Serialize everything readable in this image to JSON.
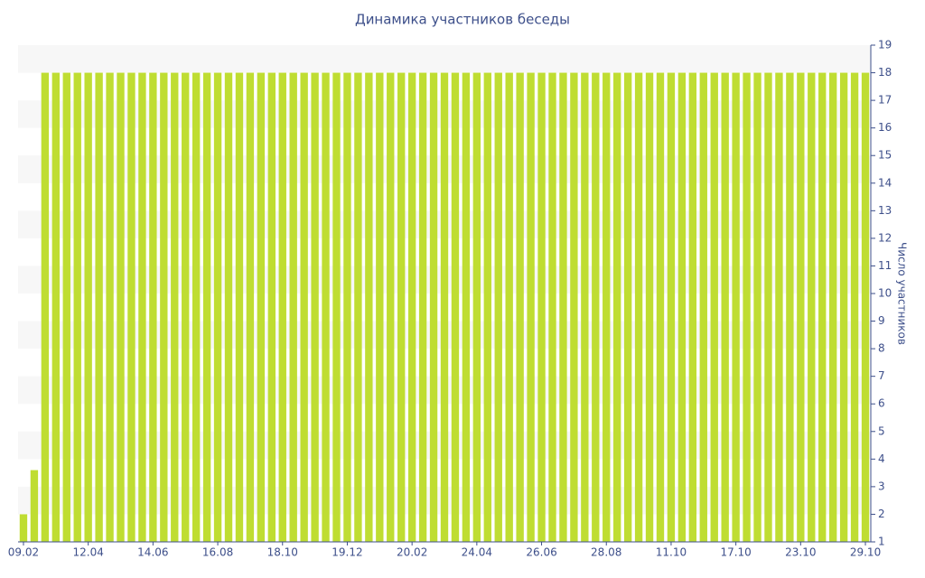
{
  "chart_data": {
    "type": "bar",
    "title": "Динамика участников беседы",
    "y_label": "Число участников",
    "categories": [
      "09.02",
      null,
      null,
      null,
      null,
      null,
      "12.04",
      null,
      null,
      null,
      null,
      null,
      "14.06",
      null,
      null,
      null,
      null,
      null,
      "16.08",
      null,
      null,
      null,
      null,
      null,
      "18.10",
      null,
      null,
      null,
      null,
      null,
      "19.12",
      null,
      null,
      null,
      null,
      null,
      "20.02",
      null,
      null,
      null,
      null,
      null,
      "24.04",
      null,
      null,
      null,
      null,
      null,
      "26.06",
      null,
      null,
      null,
      null,
      null,
      "28.08",
      null,
      null,
      null,
      null,
      null,
      "11.10",
      null,
      null,
      null,
      null,
      null,
      "17.10",
      null,
      null,
      null,
      null,
      null,
      "23.10",
      null,
      null,
      null,
      null,
      null,
      "29.10"
    ],
    "values": [
      2,
      3.6,
      18,
      18,
      18,
      18,
      18,
      18,
      18,
      18,
      18,
      18,
      18,
      18,
      18,
      18,
      18,
      18,
      18,
      18,
      18,
      18,
      18,
      18,
      18,
      18,
      18,
      18,
      18,
      18,
      18,
      18,
      18,
      18,
      18,
      18,
      18,
      18,
      18,
      18,
      18,
      18,
      18,
      18,
      18,
      18,
      18,
      18,
      18,
      18,
      18,
      18,
      18,
      18,
      18,
      18,
      18,
      18,
      18,
      18,
      18,
      18,
      18,
      18,
      18,
      18,
      18,
      18,
      18,
      18,
      18,
      18,
      18,
      18,
      18,
      18,
      18,
      18,
      18
    ],
    "color": "#bfdd32",
    "ylim": [
      1,
      19
    ],
    "yticks": [
      1,
      2,
      3,
      4,
      5,
      6,
      7,
      8,
      9,
      10,
      11,
      12,
      13,
      14,
      15,
      16,
      17,
      18,
      19
    ],
    "y_axis_side": "right",
    "banded_background": true
  }
}
